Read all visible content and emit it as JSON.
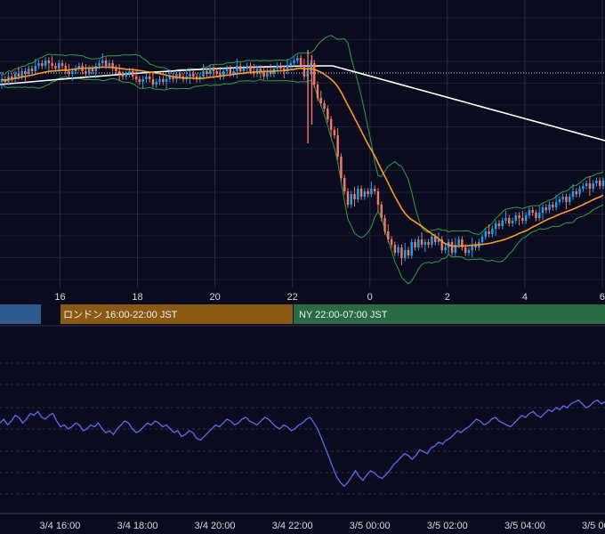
{
  "chart_data": [
    {
      "type": "candlestick",
      "title": "",
      "x_ticks": [
        "16",
        "18",
        "20",
        "22",
        "0",
        "2",
        "4",
        "6"
      ],
      "x_tick_hours": [
        16,
        18,
        20,
        22,
        24,
        26,
        28,
        30
      ],
      "x_range_hours": [
        14.45,
        30.07
      ],
      "y_range": [
        0,
        100
      ],
      "reference_level": 80,
      "candles_source_closes": [
        77,
        76,
        78,
        77,
        79,
        78,
        80,
        79,
        81,
        80,
        82,
        83,
        82,
        84,
        83,
        82,
        81,
        83,
        82,
        80,
        79,
        80,
        81,
        82,
        80,
        79,
        81,
        80,
        82,
        83,
        84,
        82,
        83,
        81,
        80,
        79,
        78,
        79,
        80,
        78,
        77,
        76,
        77,
        78,
        77,
        75,
        76,
        77,
        76,
        77,
        78,
        77,
        79,
        78,
        77,
        78,
        79,
        78,
        77,
        78,
        80,
        79,
        81,
        80,
        79,
        78,
        80,
        81,
        79,
        80,
        82,
        80,
        81,
        82,
        80,
        79,
        81,
        80,
        78,
        80,
        79,
        81,
        82,
        81,
        80,
        82,
        83,
        84,
        85,
        82,
        78,
        80,
        83,
        75,
        70,
        68,
        66,
        62,
        58,
        56,
        48,
        40,
        35,
        30,
        34,
        32,
        36,
        33,
        35,
        34,
        36,
        35,
        30,
        25,
        20,
        17,
        15,
        12,
        14,
        10,
        13,
        11,
        16,
        14,
        17,
        15,
        16,
        15,
        18,
        16,
        17,
        13,
        14,
        16,
        12,
        15,
        17,
        14,
        12,
        13,
        15,
        14,
        16,
        18,
        20,
        19,
        21,
        23,
        22,
        24,
        25,
        23,
        24,
        26,
        25,
        24,
        26,
        28,
        27,
        25,
        27,
        29,
        28,
        30,
        29,
        31,
        32,
        33,
        31,
        33,
        35,
        34,
        36,
        37,
        38,
        36,
        38,
        39,
        37,
        39
      ],
      "indicators": [
        {
          "name": "orange MA",
          "color": "#ff9a2a"
        },
        {
          "name": "white MA",
          "color": "#ffffff"
        },
        {
          "name": "bollinger band",
          "color": "#2ea043"
        }
      ],
      "colors": {
        "up": "#26a0e8",
        "down": "#f07a6a"
      },
      "grid": true
    },
    {
      "type": "line",
      "title": "",
      "series": [
        {
          "name": "",
          "color": "#5b6cf0",
          "values": [
            58,
            60,
            57,
            59,
            62,
            61,
            58,
            60,
            63,
            62,
            64,
            61,
            60,
            62,
            63,
            59,
            56,
            57,
            55,
            56,
            58,
            57,
            54,
            55,
            57,
            56,
            58,
            55,
            53,
            54,
            52,
            55,
            57,
            59,
            58,
            55,
            53,
            54,
            56,
            58,
            57,
            59,
            58,
            56,
            57,
            55,
            53,
            54,
            51,
            52,
            54,
            53,
            50,
            49,
            51,
            53,
            55,
            57,
            56,
            58,
            60,
            59,
            57,
            58,
            60,
            61,
            59,
            58,
            57,
            59,
            61,
            60,
            58,
            56,
            55,
            57,
            56,
            54,
            55,
            57,
            58,
            60,
            61,
            58,
            55,
            50,
            45,
            40,
            35,
            30,
            27,
            25,
            27,
            30,
            33,
            30,
            28,
            31,
            33,
            32,
            30,
            29,
            31,
            33,
            36,
            38,
            40,
            42,
            41,
            39,
            41,
            44,
            43,
            42,
            45,
            46,
            48,
            47,
            49,
            50,
            52,
            54,
            53,
            55,
            56,
            58,
            60,
            59,
            57,
            58,
            60,
            61,
            59,
            58,
            57,
            56,
            58,
            60,
            62,
            61,
            63,
            64,
            62,
            61,
            63,
            65,
            64,
            66,
            65,
            67,
            66,
            68,
            69,
            70,
            68,
            66,
            67,
            69,
            70,
            68,
            69
          ]
        }
      ],
      "x_labels": [
        "3/4 16:00",
        "3/4 18:00",
        "3/4 20:00",
        "3/4 22:00",
        "3/5 00:00",
        "3/5 02:00",
        "3/5 04:00",
        "3/5 06:00"
      ],
      "y_range": [
        0,
        100
      ],
      "grid": true
    }
  ],
  "sessions": [
    {
      "label": "",
      "color": "#2f5a8e"
    },
    {
      "label": "ロンドン 16:00-22:00 JST",
      "color": "#8a5a14"
    },
    {
      "label": "NY 22:00-07:00 JST",
      "color": "#2a6a45"
    }
  ]
}
